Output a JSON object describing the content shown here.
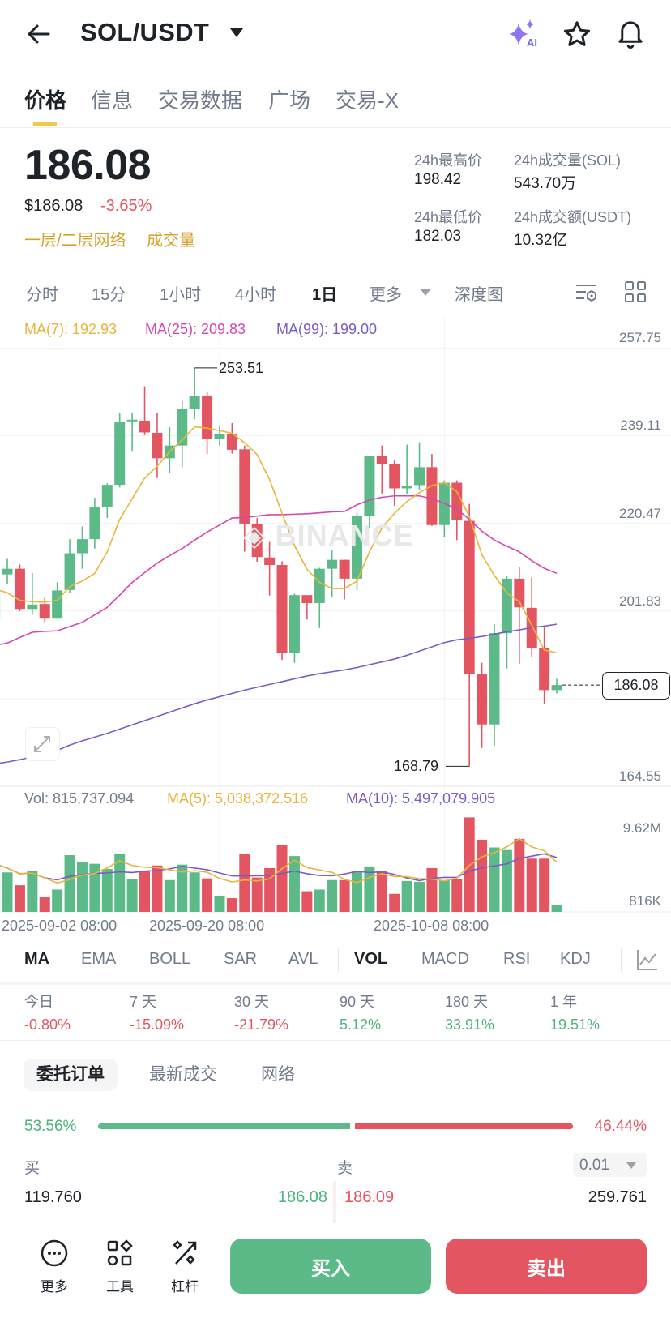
{
  "header": {
    "title": "SOL/USDT",
    "icons": [
      "back-arrow-icon",
      "caret-down-icon",
      "ai-sparkle-icon",
      "star-icon",
      "bell-icon"
    ],
    "ai_badge": "AI"
  },
  "tabs": [
    {
      "label": "价格",
      "active": true
    },
    {
      "label": "信息"
    },
    {
      "label": "交易数据"
    },
    {
      "label": "广场"
    },
    {
      "label": "交易-X"
    }
  ],
  "price": {
    "last": "186.08",
    "usd": "$186.08",
    "change": "-3.65%",
    "tag1": "一层/二层网络",
    "tag2": "成交量"
  },
  "stats": {
    "high_label": "24h最高价",
    "high": "198.42",
    "vol_sol_label": "24h成交量(SOL)",
    "vol_sol": "543.70万",
    "low_label": "24h最低价",
    "low": "182.03",
    "vol_usdt_label": "24h成交额(USDT)",
    "vol_usdt": "10.32亿"
  },
  "intervals": [
    {
      "label": "分时"
    },
    {
      "label": "15分"
    },
    {
      "label": "1小时"
    },
    {
      "label": "4小时"
    },
    {
      "label": "1日",
      "active": true
    },
    {
      "label": "更多"
    },
    {
      "label": "深度图"
    }
  ],
  "chart_legend": {
    "ma7": "MA(7): 192.93",
    "ma25": "MA(25): 209.83",
    "ma99": "MA(99): 199.00"
  },
  "vol_legend": {
    "vol": "Vol: 815,737.094",
    "ma5": "MA(5): 5,038,372.516",
    "ma10": "MA(10): 5,497,079.905"
  },
  "colors": {
    "up": "#5cba89",
    "down": "#e35561",
    "ma7": "#e8b53a",
    "ma25": "#d347b0",
    "ma99": "#7d5bc4",
    "accent": "#f0b90b"
  },
  "chart_data": {
    "type": "candlestick",
    "y_ticks": [
      "257.75",
      "239.11",
      "220.47",
      "201.83",
      "164.55"
    ],
    "ylim": [
      164.55,
      257.75
    ],
    "high_label": "253.51",
    "low_label": "168.79",
    "current_price": "186.08",
    "x_ticks": [
      {
        "index": 0,
        "label": "2025-09-02 08:00"
      },
      {
        "index": 18,
        "label": "2025-09-20 08:00"
      },
      {
        "index": 36,
        "label": "2025-10-08 08:00"
      }
    ],
    "ohlc": [
      [
        200,
        206,
        208,
        197
      ],
      [
        209.6,
        210.8,
        212.9,
        207.5
      ],
      [
        210.8,
        202.25,
        211.7,
        201.8
      ],
      [
        202.25,
        203.2,
        209.9,
        201.0
      ],
      [
        203.3,
        200.2,
        204.6,
        199.3
      ],
      [
        200.2,
        206.2,
        207.9,
        200.2
      ],
      [
        206.3,
        214.1,
        217.1,
        205.6
      ],
      [
        214.1,
        217.1,
        219.8,
        210.8
      ],
      [
        217.1,
        224.0,
        225.9,
        215.1
      ],
      [
        224.0,
        228.65,
        229.0,
        221.6
      ],
      [
        228.65,
        242.1,
        244.0,
        228.1
      ],
      [
        242.2,
        242.5,
        244.0,
        235.7
      ],
      [
        242.3,
        239.8,
        249.6,
        239.2
      ],
      [
        239.7,
        234.3,
        244.0,
        230.1
      ],
      [
        234.3,
        237.0,
        240.9,
        231.2
      ],
      [
        237.0,
        244.7,
        246.5,
        232.3
      ],
      [
        244.8,
        247.5,
        253.51,
        242.6
      ],
      [
        247.5,
        238.5,
        248.5,
        235.2
      ],
      [
        238.5,
        239.5,
        241.2,
        237.0
      ],
      [
        239.5,
        236.1,
        241.8,
        235.3
      ],
      [
        236.2,
        220.4,
        237.0,
        214.45
      ],
      [
        220.4,
        213.3,
        221.6,
        212.3
      ],
      [
        213.2,
        211.6,
        216.5,
        205.1
      ],
      [
        211.6,
        192.9,
        212.4,
        191.4
      ],
      [
        192.9,
        205.2,
        205.5,
        190.8
      ],
      [
        205.2,
        203.5,
        205.2,
        200.0
      ],
      [
        203.5,
        210.8,
        211.0,
        198.2
      ],
      [
        210.8,
        212.7,
        214.7,
        204.7
      ],
      [
        212.7,
        208.7,
        212.7,
        204.3
      ],
      [
        208.7,
        222.0,
        222.7,
        206.3
      ],
      [
        222.0,
        234.8,
        234.8,
        219.5
      ],
      [
        234.8,
        233.0,
        237.0,
        226.8
      ],
      [
        233.0,
        227.9,
        233.8,
        224.2
      ],
      [
        227.9,
        228.4,
        237.2,
        226.65
      ],
      [
        228.6,
        232.4,
        237.7,
        227.6
      ],
      [
        232.4,
        220.1,
        235.2,
        219.9
      ],
      [
        220.1,
        229.1,
        229.6,
        217.6
      ],
      [
        229.1,
        221.2,
        229.6,
        216.9
      ],
      [
        221.0,
        188.5,
        224.6,
        168.79
      ],
      [
        188.5,
        177.7,
        190.8,
        172.7
      ],
      [
        177.7,
        197.1,
        199.0,
        173.2
      ],
      [
        197.1,
        208.7,
        209.2,
        189.6
      ],
      [
        208.7,
        202.6,
        211.1,
        190.6
      ],
      [
        202.5,
        193.9,
        209.0,
        192.0
      ],
      [
        193.9,
        185.0,
        198.6,
        182.03
      ],
      [
        185.0,
        186.08,
        187.4,
        184.3
      ]
    ],
    "ma7": [
      206.5,
      205.7,
      204.1,
      203.8,
      203.7,
      204.1,
      207.0,
      208.2,
      209.8,
      214.4,
      221.3,
      225.7,
      230.1,
      232.6,
      235.7,
      238.2,
      241.0,
      240.7,
      240.2,
      239.6,
      237.6,
      235.1,
      229.8,
      222.6,
      215.7,
      210.7,
      207.9,
      206.6,
      206.6,
      208.2,
      214.4,
      219.5,
      222.6,
      225.1,
      227.0,
      228.5,
      229.1,
      227.2,
      221.9,
      213.8,
      209.4,
      205.7,
      203.8,
      198.8,
      193.5,
      192.93
    ],
    "ma25": [
      194.5,
      195.0,
      196.2,
      197.3,
      197.5,
      197.6,
      198.5,
      199.4,
      201.0,
      202.6,
      205.2,
      207.9,
      210.0,
      212.0,
      213.6,
      215.1,
      216.9,
      218.6,
      220.1,
      221.6,
      221.7,
      222.0,
      222.3,
      222.3,
      222.4,
      222.5,
      222.7,
      222.9,
      223.0,
      224.4,
      225.4,
      226.0,
      226.3,
      226.3,
      226.3,
      225.7,
      224.7,
      223.5,
      221.3,
      218.8,
      216.9,
      215.6,
      214.4,
      212.5,
      210.9,
      209.83
    ],
    "ma99": [
      169.3,
      169.7,
      170.2,
      170.8,
      171.5,
      172.2,
      173.3,
      174.2,
      175.0,
      175.8,
      176.7,
      177.6,
      178.5,
      179.4,
      180.3,
      181.2,
      182.1,
      182.9,
      183.6,
      184.3,
      185.0,
      185.6,
      186.2,
      186.8,
      187.4,
      188.0,
      188.5,
      188.9,
      189.3,
      189.8,
      190.4,
      191.0,
      191.6,
      192.4,
      193.3,
      194.2,
      195.1,
      195.7,
      196.0,
      196.4,
      196.9,
      197.4,
      197.8,
      198.3,
      198.6,
      199.0
    ],
    "volume_m": [
      5.6,
      4.6,
      3.1,
      4.8,
      1.7,
      2.6,
      6.6,
      5.8,
      5.6,
      5.0,
      6.8,
      3.8,
      4.8,
      5.4,
      3.7,
      5.5,
      4.6,
      3.9,
      1.8,
      1.6,
      6.7,
      4.0,
      5.1,
      7.8,
      6.5,
      2.4,
      2.6,
      3.7,
      3.7,
      4.7,
      5.3,
      4.8,
      2.1,
      3.6,
      3.5,
      5.1,
      3.7,
      3.8,
      11.0,
      8.4,
      7.5,
      7.2,
      8.5,
      6.2,
      6.2,
      0.82
    ],
    "vol_ticks": [
      "9.62M",
      "816K"
    ]
  },
  "indicators": [
    {
      "label": "MA",
      "active": true
    },
    {
      "label": "EMA"
    },
    {
      "label": "BOLL"
    },
    {
      "label": "SAR"
    },
    {
      "label": "AVL"
    },
    {
      "label": "VOL",
      "active": true
    },
    {
      "label": "MACD"
    },
    {
      "label": "RSI"
    },
    {
      "label": "KDJ"
    }
  ],
  "performance": [
    {
      "label": "今日",
      "value": "-0.80%"
    },
    {
      "label": "7 天",
      "value": "-15.09%"
    },
    {
      "label": "30 天",
      "value": "-21.79%"
    },
    {
      "label": "90 天",
      "value": "5.12%"
    },
    {
      "label": "180 天",
      "value": "33.91%"
    },
    {
      "label": "1 年",
      "value": "19.51%"
    }
  ],
  "orderbook": {
    "tabs": [
      "委托订单",
      "最新成交",
      "网络"
    ],
    "buy_pct": "53.56%",
    "sell_pct": "46.44%",
    "buy_ratio": 53.56,
    "buy_label": "买",
    "sell_label": "卖",
    "precision": "0.01",
    "rows": [
      {
        "bid_qty": "119.760",
        "bid": "186.08",
        "ask": "186.09",
        "ask_qty": "259.761"
      }
    ]
  },
  "bottom": {
    "more": "更多",
    "tools": "工具",
    "leverage": "杠杆",
    "buy": "买入",
    "sell": "卖出"
  }
}
